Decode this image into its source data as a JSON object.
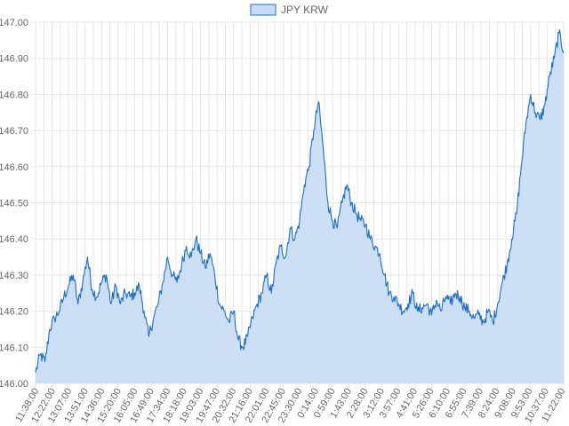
{
  "chart_data": {
    "type": "area",
    "legend": {
      "label": "JPY KRW",
      "position": "top"
    },
    "colors": {
      "line": "#1e6fc8",
      "fill": "#c7dcf4",
      "grid": "#e6e6e6"
    },
    "grid": true,
    "ylim": [
      146.0,
      147.0
    ],
    "yticks": [
      "146.00",
      "146.10",
      "146.20",
      "146.30",
      "146.40",
      "146.50",
      "146.60",
      "146.70",
      "146.80",
      "146.90",
      "147.00"
    ],
    "x_tick_labels": [
      "11:38:00",
      "12:22:00",
      "13:07:00",
      "13:51:00",
      "14:36:00",
      "15:20:00",
      "16:05:00",
      "16:49:00",
      "17:34:00",
      "18:18:00",
      "19:03:00",
      "19:47:00",
      "20:32:00",
      "21:16:00",
      "22:01:00",
      "22:45:00",
      "23:30:00",
      "0:14:00",
      "0:59:00",
      "1:43:00",
      "2:28:00",
      "3:12:00",
      "3:57:00",
      "4:41:00",
      "5:26:00",
      "6:10:00",
      "6:55:00",
      "7:39:00",
      "8:24:00",
      "9:08:00",
      "9:53:00",
      "10:37:00",
      "11:22:00"
    ],
    "series": [
      {
        "name": "JPY KRW",
        "values": [
          146.03,
          146.08,
          146.06,
          146.15,
          146.18,
          146.2,
          146.24,
          146.27,
          146.3,
          146.22,
          146.28,
          146.35,
          146.26,
          146.24,
          146.28,
          146.3,
          146.22,
          146.27,
          146.22,
          146.25,
          146.24,
          146.25,
          146.27,
          146.2,
          146.13,
          146.18,
          146.22,
          146.28,
          146.35,
          146.3,
          146.28,
          146.33,
          146.38,
          146.35,
          146.4,
          146.36,
          146.32,
          146.36,
          146.3,
          146.22,
          146.2,
          146.17,
          146.2,
          146.12,
          146.1,
          146.13,
          146.18,
          146.22,
          146.25,
          146.3,
          146.25,
          146.33,
          146.38,
          146.35,
          146.43,
          146.4,
          146.45,
          146.55,
          146.6,
          146.7,
          146.78,
          146.65,
          146.5,
          146.45,
          146.43,
          146.5,
          146.55,
          146.5,
          146.47,
          146.45,
          146.44,
          146.4,
          146.38,
          146.36,
          146.3,
          146.25,
          146.24,
          146.22,
          146.2,
          146.22,
          146.25,
          146.2,
          146.21,
          146.22,
          146.19,
          146.23,
          146.2,
          146.24,
          146.22,
          146.25,
          146.24,
          146.21,
          146.2,
          146.18,
          146.19,
          146.17,
          146.2,
          146.17,
          146.22,
          146.28,
          146.33,
          146.4,
          146.47,
          146.6,
          146.72,
          146.8,
          146.75,
          146.73,
          146.77,
          146.85,
          146.9,
          146.97,
          146.92
        ]
      }
    ]
  }
}
